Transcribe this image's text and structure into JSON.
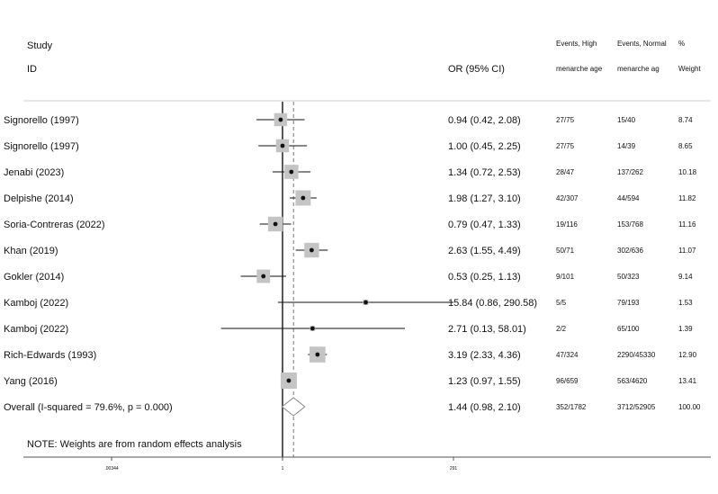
{
  "header": {
    "study_line1": "Study",
    "study_line2": "ID",
    "or_label": "OR (95% CI)",
    "events_high_line1": "Events, High",
    "events_high_line2": "menarche age",
    "events_normal_line1": "Events, Normal",
    "events_normal_line2": "menarche ag",
    "weight_line1": "%",
    "weight_line2": "Weight"
  },
  "chart_data": {
    "type": "forest",
    "scale": "log",
    "null_line": 1,
    "x_ticks": [
      {
        "value": 0.00344,
        "label": ".00344"
      },
      {
        "value": 1,
        "label": "1"
      },
      {
        "value": 291,
        "label": "291"
      }
    ],
    "studies": [
      {
        "id": "Signorello (1997)",
        "or": 0.94,
        "lower": 0.42,
        "upper": 2.08,
        "or_text": "0.94 (0.42, 2.08)",
        "events_high": "27/75",
        "events_normal": "15/40",
        "weight": 8.74,
        "weight_text": "8.74"
      },
      {
        "id": "Signorello (1997)",
        "or": 1.0,
        "lower": 0.45,
        "upper": 2.25,
        "or_text": "1.00 (0.45, 2.25)",
        "events_high": "27/75",
        "events_normal": "14/39",
        "weight": 8.65,
        "weight_text": "8.65"
      },
      {
        "id": "Jenabi (2023)",
        "or": 1.34,
        "lower": 0.72,
        "upper": 2.53,
        "or_text": "1.34 (0.72, 2.53)",
        "events_high": "28/47",
        "events_normal": "137/262",
        "weight": 10.18,
        "weight_text": "10.18"
      },
      {
        "id": "Delpishe (2014)",
        "or": 1.98,
        "lower": 1.27,
        "upper": 3.1,
        "or_text": "1.98 (1.27, 3.10)",
        "events_high": "42/307",
        "events_normal": "44/594",
        "weight": 11.82,
        "weight_text": "11.82"
      },
      {
        "id": "Soria-Contreras (2022)",
        "or": 0.79,
        "lower": 0.47,
        "upper": 1.33,
        "or_text": "0.79 (0.47, 1.33)",
        "events_high": "19/116",
        "events_normal": "153/768",
        "weight": 11.16,
        "weight_text": "11.16"
      },
      {
        "id": "Khan (2019)",
        "or": 2.63,
        "lower": 1.55,
        "upper": 4.49,
        "or_text": "2.63 (1.55, 4.49)",
        "events_high": "50/71",
        "events_normal": "302/636",
        "weight": 11.07,
        "weight_text": "11.07"
      },
      {
        "id": "Gokler (2014)",
        "or": 0.53,
        "lower": 0.25,
        "upper": 1.13,
        "or_text": "0.53 (0.25, 1.13)",
        "events_high": "9/101",
        "events_normal": "50/323",
        "weight": 9.14,
        "weight_text": "9.14"
      },
      {
        "id": "Kamboj (2022)",
        "or": 15.84,
        "lower": 0.86,
        "upper": 290.58,
        "or_text": "15.84 (0.86, 290.58)",
        "events_high": "5/5",
        "events_normal": "79/193",
        "weight": 1.53,
        "weight_text": "1.53"
      },
      {
        "id": "Kamboj (2022)",
        "or": 2.71,
        "lower": 0.13,
        "upper": 58.01,
        "or_text": "2.71 (0.13, 58.01)",
        "events_high": "2/2",
        "events_normal": "65/100",
        "weight": 1.39,
        "weight_text": "1.39"
      },
      {
        "id": "Rich-Edwards (1993)",
        "or": 3.19,
        "lower": 2.33,
        "upper": 4.36,
        "or_text": "3.19 (2.33, 4.36)",
        "events_high": "47/324",
        "events_normal": "2290/45330",
        "weight": 12.9,
        "weight_text": "12.90"
      },
      {
        "id": "Yang (2016)",
        "or": 1.23,
        "lower": 0.97,
        "upper": 1.55,
        "or_text": "1.23 (0.97, 1.55)",
        "events_high": "96/659",
        "events_normal": "563/4620",
        "weight": 13.41,
        "weight_text": "13.41"
      }
    ],
    "overall": {
      "label": "Overall  (I-squared = 79.6%, p = 0.000)",
      "or": 1.44,
      "lower": 0.98,
      "upper": 2.1,
      "or_text": "1.44 (0.98, 2.10)",
      "events_high": "352/1782",
      "events_normal": "3712/52905",
      "weight_text": "100.00"
    },
    "note": "NOTE: Weights are from random effects analysis"
  }
}
